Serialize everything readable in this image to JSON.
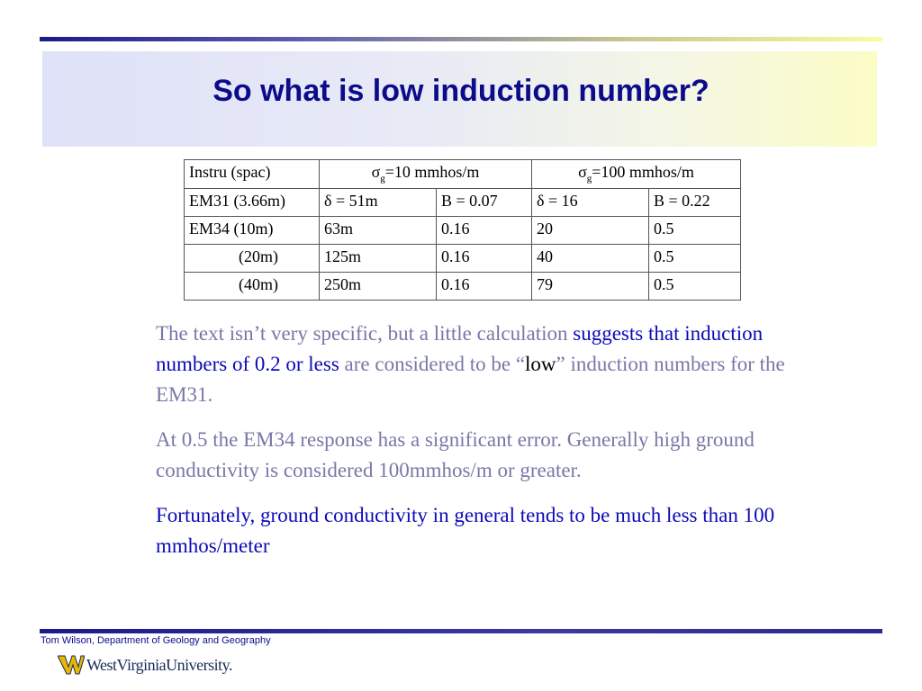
{
  "slide": {
    "title": "So what is low induction number?"
  },
  "table": {
    "header": {
      "col0": "Instru (spac)",
      "sigma_symbol": "σ",
      "sigma_sub": "g",
      "col1": "=10 mmhos/m",
      "col2": "=100 mmhos/m"
    },
    "rows": [
      [
        "EM31 (3.66m)",
        "δ = 51m",
        "B = 0.07",
        "δ = 16",
        "B = 0.22"
      ],
      [
        "EM34 (10m)",
        "63m",
        "0.16",
        "20",
        "0.5"
      ],
      [
        "(20m)",
        "125m",
        "0.16",
        "40",
        "0.5"
      ],
      [
        "(40m)",
        "250m",
        "0.16",
        "79",
        "0.5"
      ]
    ]
  },
  "paragraphs": {
    "p1_a": "The text isn’t very specific, but a little calculation ",
    "p1_b": "suggests that induction numbers of 0.2 or less",
    "p1_c": " are considered to be “",
    "p1_d": "low",
    "p1_e": "” induction numbers for the EM31.",
    "p2": "At 0.5 the EM34 response has a significant error. Generally high ground conductivity is considered 100mmhos/m or greater.",
    "p3": "Fortunately, ground conductivity in general tends to be much less than 100 mmhos/meter"
  },
  "footer": {
    "credit": "Tom Wilson, Department of Geology and Geography",
    "logo_text": "WestVirginiaUniversity."
  },
  "colors": {
    "title": "#0b0b8c",
    "muted_text": "#7878a8",
    "emphasis_text": "#0a0ab8",
    "rule": "#1a1a8c"
  }
}
